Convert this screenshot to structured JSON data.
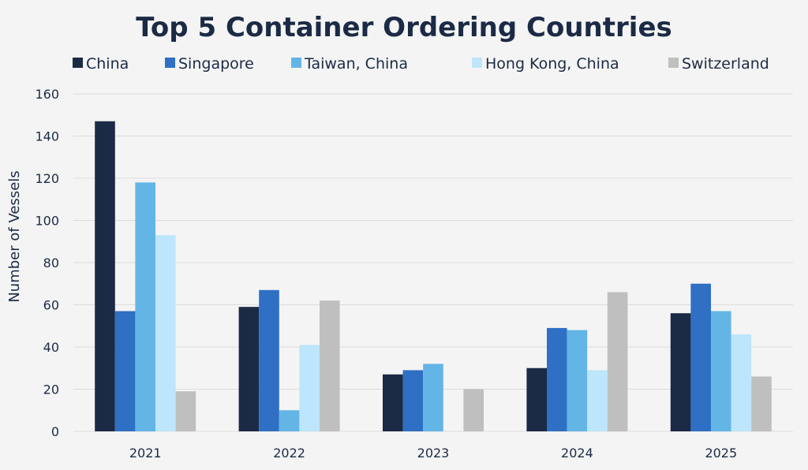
{
  "chart_data": {
    "type": "bar",
    "title": "Top 5 Container Ordering Countries",
    "xlabel": "",
    "ylabel": "Number of Vessels",
    "ylim": [
      0,
      160
    ],
    "yticks": [
      0,
      20,
      40,
      60,
      80,
      100,
      120,
      140,
      160
    ],
    "grid": true,
    "legend_position": "top",
    "categories": [
      "2021",
      "2022",
      "2023",
      "2024",
      "2025"
    ],
    "series": [
      {
        "name": "China",
        "color": "#1b2a45",
        "values": [
          147,
          59,
          27,
          30,
          56
        ]
      },
      {
        "name": "Singapore",
        "color": "#2f6fc4",
        "values": [
          57,
          67,
          29,
          49,
          70
        ]
      },
      {
        "name": "Taiwan, China",
        "color": "#63b5e6",
        "values": [
          118,
          10,
          32,
          48,
          57
        ]
      },
      {
        "name": "Hong Kong, China",
        "color": "#bde5fb",
        "values": [
          93,
          41,
          0,
          29,
          46
        ]
      },
      {
        "name": "Switzerland",
        "color": "#bfbfbf",
        "values": [
          19,
          62,
          20,
          66,
          26
        ]
      }
    ]
  }
}
